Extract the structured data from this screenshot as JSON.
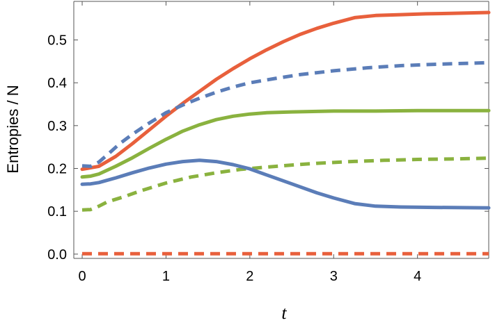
{
  "chart_data": {
    "type": "line",
    "title": "",
    "xlabel": "t",
    "ylabel": "Entropies / N",
    "xlim": [
      -0.1,
      4.85
    ],
    "ylim": [
      -0.01,
      0.59
    ],
    "xticks": [
      0,
      1,
      2,
      3,
      4
    ],
    "xtick_labels": [
      "0",
      "1",
      "2",
      "3",
      "4"
    ],
    "yticks": [
      0.0,
      0.1,
      0.2,
      0.3,
      0.4,
      0.5
    ],
    "ytick_labels": [
      "0.0",
      "0.1",
      "0.2",
      "0.3",
      "0.4",
      "0.5"
    ],
    "grid": false,
    "legend": "none",
    "series": [
      {
        "color": "#e8603c",
        "dash": "solid",
        "x": [
          0,
          0.2,
          0.4,
          0.6,
          0.8,
          1.0,
          1.2,
          1.4,
          1.6,
          1.8,
          2.0,
          2.2,
          2.4,
          2.6,
          2.8,
          3.0,
          3.25,
          3.5,
          3.8,
          4.1,
          4.4,
          4.85
        ],
        "y": [
          0.198,
          0.205,
          0.228,
          0.258,
          0.29,
          0.322,
          0.352,
          0.38,
          0.408,
          0.433,
          0.456,
          0.477,
          0.496,
          0.513,
          0.527,
          0.539,
          0.552,
          0.557,
          0.559,
          0.561,
          0.562,
          0.564
        ]
      },
      {
        "color": "#5b7db8",
        "dash": "dashed",
        "x": [
          0,
          0.1,
          0.2,
          0.3,
          0.45,
          0.6,
          0.8,
          1.0,
          1.2,
          1.4,
          1.6,
          1.8,
          2.0,
          2.3,
          2.6,
          3.0,
          3.4,
          3.8,
          4.2,
          4.85
        ],
        "y": [
          0.206,
          0.205,
          0.215,
          0.232,
          0.258,
          0.28,
          0.306,
          0.33,
          0.348,
          0.364,
          0.378,
          0.39,
          0.4,
          0.41,
          0.419,
          0.428,
          0.435,
          0.44,
          0.443,
          0.447
        ]
      },
      {
        "color": "#8ab23f",
        "dash": "solid",
        "x": [
          0,
          0.1,
          0.2,
          0.4,
          0.6,
          0.8,
          1.0,
          1.2,
          1.4,
          1.6,
          1.8,
          2.0,
          2.2,
          2.5,
          3.0,
          3.5,
          4.0,
          4.85
        ],
        "y": [
          0.18,
          0.182,
          0.187,
          0.205,
          0.225,
          0.247,
          0.268,
          0.287,
          0.302,
          0.314,
          0.322,
          0.327,
          0.33,
          0.332,
          0.334,
          0.334,
          0.335,
          0.335
        ]
      },
      {
        "color": "#8ab23f",
        "dash": "dashed",
        "x": [
          0,
          0.1,
          0.2,
          0.3,
          0.5,
          0.7,
          1.0,
          1.3,
          1.6,
          1.9,
          2.2,
          2.5,
          2.8,
          3.2,
          3.6,
          4.0,
          4.4,
          4.85
        ],
        "y": [
          0.103,
          0.104,
          0.112,
          0.122,
          0.134,
          0.148,
          0.166,
          0.18,
          0.19,
          0.198,
          0.203,
          0.208,
          0.212,
          0.216,
          0.219,
          0.221,
          0.222,
          0.224
        ]
      },
      {
        "color": "#5b7db8",
        "dash": "solid",
        "x": [
          0,
          0.1,
          0.2,
          0.4,
          0.6,
          0.8,
          1.0,
          1.2,
          1.4,
          1.6,
          1.8,
          2.0,
          2.2,
          2.5,
          2.8,
          3.0,
          3.25,
          3.5,
          3.8,
          4.2,
          4.85
        ],
        "y": [
          0.163,
          0.164,
          0.167,
          0.178,
          0.19,
          0.201,
          0.21,
          0.216,
          0.219,
          0.216,
          0.209,
          0.199,
          0.185,
          0.164,
          0.143,
          0.131,
          0.118,
          0.112,
          0.11,
          0.109,
          0.108
        ]
      },
      {
        "color": "#e8603c",
        "dash": "dashed",
        "x": [
          0,
          4.85
        ],
        "y": [
          0.001,
          0.001
        ]
      }
    ]
  }
}
